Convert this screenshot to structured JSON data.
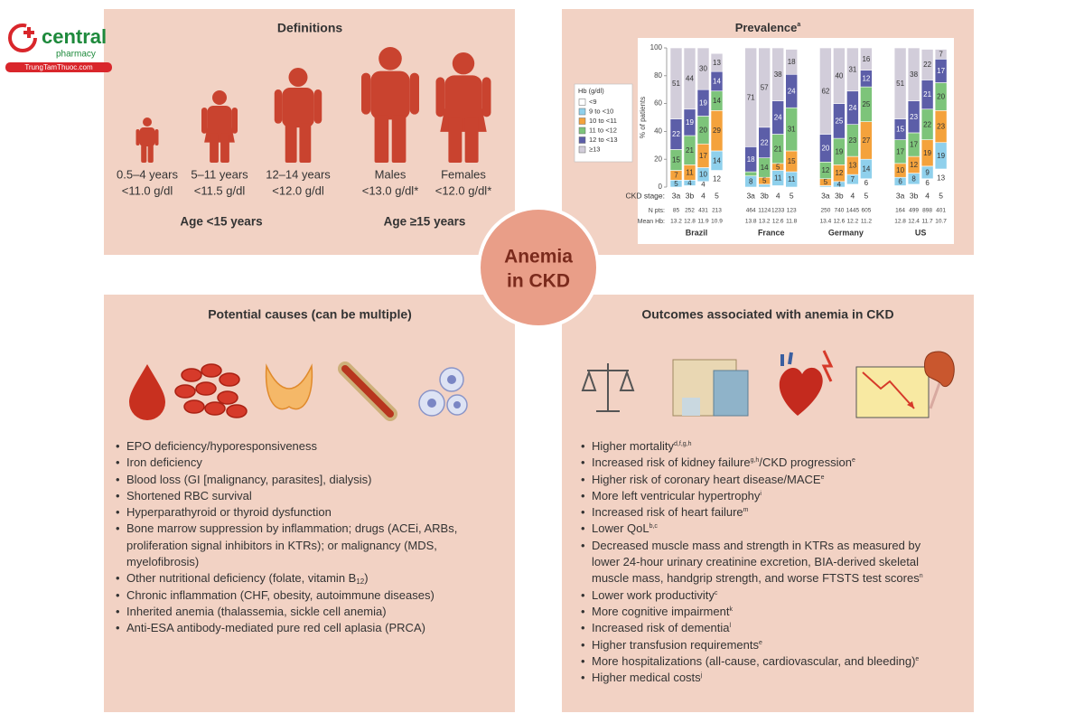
{
  "logo": {
    "brand": "central",
    "tagline": "pharmacy",
    "site": "TrungTamThuoc.com"
  },
  "definitions": {
    "title": "Definitions",
    "groups": [
      {
        "age": "0.5–4 years",
        "threshold": "<11.0 g/dl"
      },
      {
        "age": "5–11 years",
        "threshold": "<11.5 g/dl"
      },
      {
        "age": "12–14 years",
        "threshold": "<12.0 g/dl"
      },
      {
        "age": "Males",
        "threshold": "<13.0 g/dl*"
      },
      {
        "age": "Females",
        "threshold": "<12.0 g/dl*"
      }
    ],
    "age_labels": [
      "Age <15 years",
      "Age ≥15 years"
    ]
  },
  "center": {
    "lines": [
      "Anemia",
      "in CKD"
    ]
  },
  "chart_data": {
    "type": "bar",
    "stacked": true,
    "title": "Prevalence",
    "title_note": "a",
    "ylabel": "% of patients",
    "ylim": [
      0,
      100
    ],
    "yticks": [
      0,
      20,
      40,
      60,
      80,
      100
    ],
    "legend_title": "Hb (g/dl)",
    "legend": "left",
    "row_labels": [
      "CKD stage:",
      "N pts:",
      "Mean Hb:"
    ],
    "groups": [
      "Brazil",
      "France",
      "Germany",
      "US"
    ],
    "categories": [
      "3a",
      "3b",
      "4",
      "5",
      "3a",
      "3b",
      "4",
      "5",
      "3a",
      "3b",
      "4",
      "5",
      "3a",
      "3b",
      "4",
      "5"
    ],
    "n_pts": [
      85,
      252,
      431,
      213,
      464,
      1124,
      1233,
      123,
      250,
      740,
      1445,
      605,
      164,
      499,
      898,
      401
    ],
    "mean_hb": [
      13.2,
      12.8,
      11.9,
      10.9,
      13.8,
      13.2,
      12.6,
      11.8,
      13.4,
      12.6,
      12.2,
      11.2,
      12.8,
      12.4,
      11.7,
      10.7
    ],
    "series": [
      {
        "name": "<9",
        "color": "#ffffff",
        "values": [
          0,
          1,
          4,
          12,
          0,
          0,
          1,
          0,
          0,
          0,
          2,
          6,
          1,
          2,
          6,
          13
        ]
      },
      {
        "name": "9 to <10",
        "color": "#8fd0ec",
        "values": [
          5,
          4,
          10,
          14,
          8,
          2,
          11,
          11,
          1,
          4,
          7,
          14,
          6,
          8,
          9,
          19
        ]
      },
      {
        "name": "10 to <11",
        "color": "#f4a23c",
        "values": [
          7,
          11,
          17,
          29,
          0,
          5,
          5,
          15,
          5,
          12,
          13,
          27,
          10,
          12,
          19,
          23
        ]
      },
      {
        "name": "11 to <12",
        "color": "#7dc47a",
        "values": [
          15,
          21,
          20,
          14,
          3,
          14,
          21,
          31,
          12,
          19,
          23,
          25,
          17,
          17,
          22,
          20
        ]
      },
      {
        "name": "12 to <13",
        "color": "#5c5ea8",
        "values": [
          22,
          19,
          19,
          14,
          18,
          22,
          24,
          24,
          20,
          25,
          24,
          12,
          15,
          23,
          21,
          17
        ]
      },
      {
        "name": "≥13",
        "color": "#d2cdda",
        "values": [
          51,
          44,
          30,
          13,
          71,
          57,
          38,
          18,
          62,
          40,
          31,
          16,
          51,
          38,
          22,
          7
        ]
      }
    ]
  },
  "causes": {
    "title": "Potential causes (can be multiple)",
    "items": [
      [
        {
          "text": "EPO deficiency/hyporesponsiveness"
        }
      ],
      [
        {
          "text": "Iron deficiency"
        }
      ],
      [
        {
          "text": "Blood loss (GI [malignancy, parasites], dialysis)"
        }
      ],
      [
        {
          "text": "Shortened RBC survival"
        }
      ],
      [
        {
          "text": "Hyperparathyroid or thyroid dysfunction"
        }
      ],
      [
        {
          "text": "Bone marrow suppression by inflammation; drugs (ACEi, ARBs, proliferation signal inhibitors in KTRs); or malignancy (MDS, myelofibrosis)"
        }
      ],
      [
        {
          "text": "Other nutritional deficiency (folate, vitamin B"
        },
        {
          "sub": "12"
        },
        {
          "text": ")"
        }
      ],
      [
        {
          "text": "Chronic inflammation (CHF, obesity, autoimmune diseases)"
        }
      ],
      [
        {
          "text": "Inherited anemia (thalassemia, sickle cell anemia)"
        }
      ],
      [
        {
          "text": "Anti-ESA antibody-mediated pure red cell aplasia (PRCA)"
        }
      ]
    ]
  },
  "outcomes": {
    "title": "Outcomes associated with anemia in CKD",
    "items": [
      [
        {
          "text": "Higher mortality"
        },
        {
          "sup": "d,f,g,h"
        }
      ],
      [
        {
          "text": "Increased risk of kidney failure"
        },
        {
          "sup": "g,h"
        },
        {
          "text": "/CKD progression"
        },
        {
          "sup": "e"
        }
      ],
      [
        {
          "text": "Higher risk of coronary heart disease/MACE"
        },
        {
          "sup": "e"
        }
      ],
      [
        {
          "text": "More left ventricular hypertrophy"
        },
        {
          "sup": "i"
        }
      ],
      [
        {
          "text": "Increased risk of heart failure"
        },
        {
          "sup": "m"
        }
      ],
      [
        {
          "text": "Lower QoL"
        },
        {
          "sup": "b,c"
        }
      ],
      [
        {
          "text": "Decreased muscle mass and strength in KTRs as measured by lower 24-hour urinary creatinine excretion, BIA-derived skeletal muscle mass, handgrip strength, and worse FTSTS test scores"
        },
        {
          "sup": "n"
        }
      ],
      [
        {
          "text": "Lower work productivity"
        },
        {
          "sup": "c"
        }
      ],
      [
        {
          "text": "More cognitive impairment"
        },
        {
          "sup": "k"
        }
      ],
      [
        {
          "text": "Increased risk of dementia"
        },
        {
          "sup": "l"
        }
      ],
      [
        {
          "text": "Higher transfusion requirements"
        },
        {
          "sup": "e"
        }
      ],
      [
        {
          "text": "More hospitalizations (all-cause, cardiovascular, and bleeding)"
        },
        {
          "sup": "e"
        }
      ],
      [
        {
          "text": "Higher medical costs"
        },
        {
          "sup": "j"
        }
      ]
    ]
  }
}
